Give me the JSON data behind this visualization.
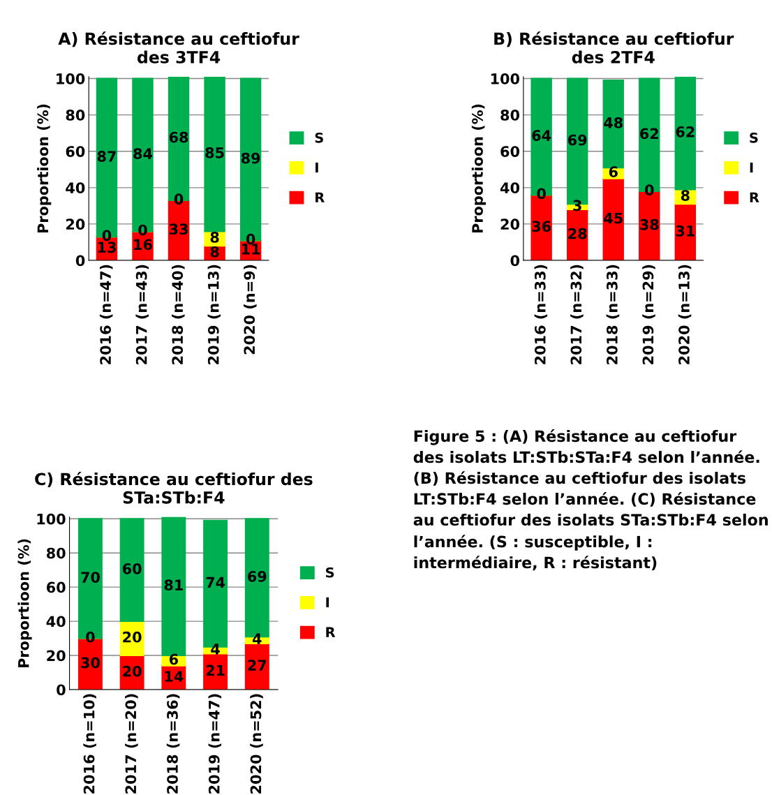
{
  "chart_data": [
    {
      "type": "bar",
      "title": "A) Résistance au ceftiofur des 3TF4",
      "ylabel": "Proportioon (%)",
      "categories": [
        "2016 (n=47)",
        "2017 (n=43)",
        "2018 (n=40)",
        "2019 (n=13)",
        "2020 (n=9)"
      ],
      "stacked": true,
      "ylim": [
        0,
        101
      ],
      "yticks": [
        0,
        20,
        40,
        60,
        80,
        100
      ],
      "grid": "y",
      "legend": "right",
      "series": [
        {
          "name": "R",
          "color": "#ff0000",
          "values": [
            13,
            16,
            33,
            8,
            11
          ],
          "value_labels": [
            "13",
            "16",
            "33",
            "8",
            "11"
          ]
        },
        {
          "name": "I",
          "color": "#ffff00",
          "values": [
            0,
            0,
            0,
            8,
            0
          ],
          "value_labels": [
            "0",
            "0",
            "0",
            "8",
            "0"
          ]
        },
        {
          "name": "S",
          "color": "#00b050",
          "values": [
            87,
            84,
            68,
            85,
            89
          ],
          "value_labels": [
            "87",
            "84",
            "68",
            "85",
            "89"
          ]
        }
      ]
    },
    {
      "type": "bar",
      "title": "B) Résistance au ceftiofur des 2TF4",
      "ylabel": "Proportioon (%)",
      "categories": [
        "2016 (n=33)",
        "2017 (n=32)",
        "2018 (n=33)",
        "2019 (n=29)",
        "2020 (n=13)"
      ],
      "stacked": true,
      "ylim": [
        0,
        101
      ],
      "yticks": [
        0,
        20,
        40,
        60,
        80,
        100
      ],
      "grid": "y",
      "legend": "right",
      "series": [
        {
          "name": "R",
          "color": "#ff0000",
          "values": [
            36,
            28,
            45,
            38,
            31
          ],
          "value_labels": [
            "36",
            "28",
            "45",
            "38",
            "31"
          ]
        },
        {
          "name": "I",
          "color": "#ffff00",
          "values": [
            0,
            3,
            6,
            0,
            8
          ],
          "value_labels": [
            "0",
            "3",
            "6",
            "0",
            "8"
          ]
        },
        {
          "name": "S",
          "color": "#00b050",
          "values": [
            64,
            69,
            48,
            62,
            62
          ],
          "value_labels": [
            "64",
            "69",
            "48",
            "62",
            "62"
          ]
        }
      ]
    },
    {
      "type": "bar",
      "title": "C) Résistance au ceftiofur des STa:STb:F4",
      "ylabel": "Proportioon (%)",
      "categories": [
        "2016 (n=10)",
        "2017 (n=20)",
        "2018 (n=36)",
        "2019 (n=47)",
        "2020 (n=52)"
      ],
      "stacked": true,
      "ylim": [
        0,
        101
      ],
      "yticks": [
        0,
        20,
        40,
        60,
        80,
        100
      ],
      "grid": "y",
      "legend": "right",
      "series": [
        {
          "name": "R",
          "color": "#ff0000",
          "values": [
            30,
            20,
            14,
            21,
            27
          ],
          "value_labels": [
            "30",
            "20",
            "14",
            "21",
            "27"
          ]
        },
        {
          "name": "I",
          "color": "#ffff00",
          "values": [
            0,
            20,
            6,
            4,
            4
          ],
          "value_labels": [
            "0",
            "20",
            "6",
            "4",
            "4"
          ]
        },
        {
          "name": "S",
          "color": "#00b050",
          "values": [
            70,
            60,
            81,
            74,
            69
          ],
          "value_labels": [
            "70",
            "60",
            "81",
            "74",
            "69"
          ]
        }
      ]
    },
    {
      "type": "other",
      "annotations": [
        "Figure 5 : (A) Résistance au ceftiofur des isolats LT:STb:STa:F4 selon l’année. (B) Résistance au ceftiofur des isolats LT:STb:F4 selon l’année. (C) Résistance au ceftiofur des isolats STa:STb:F4 selon l’année. (S : susceptible, I : intermédiaire, R : résistant)"
      ]
    }
  ]
}
